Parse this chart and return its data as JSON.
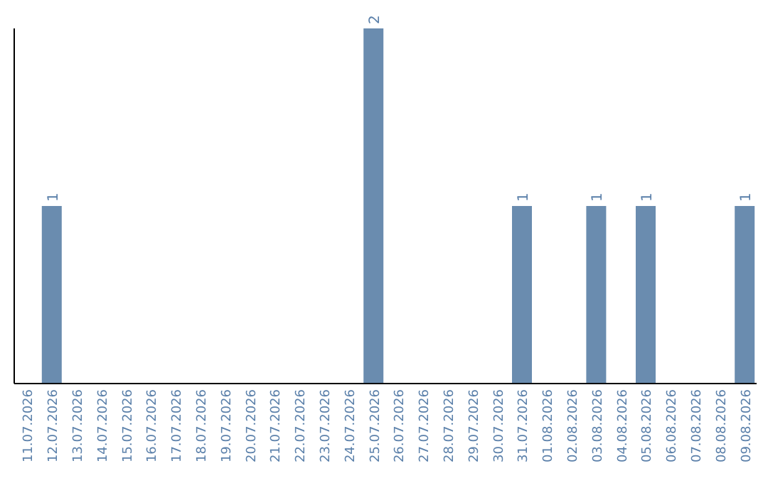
{
  "chart_data": {
    "type": "bar",
    "categories": [
      "11.07.2026",
      "12.07.2026",
      "13.07.2026",
      "14.07.2026",
      "15.07.2026",
      "16.07.2026",
      "17.07.2026",
      "18.07.2026",
      "19.07.2026",
      "20.07.2026",
      "21.07.2026",
      "22.07.2026",
      "23.07.2026",
      "24.07.2026",
      "25.07.2026",
      "26.07.2026",
      "27.07.2026",
      "28.07.2026",
      "29.07.2026",
      "30.07.2026",
      "31.07.2026",
      "01.08.2026",
      "02.08.2026",
      "03.08.2026",
      "04.08.2026",
      "05.08.2026",
      "06.08.2026",
      "07.08.2026",
      "08.08.2026",
      "09.08.2026"
    ],
    "values": [
      0,
      1,
      0,
      0,
      0,
      0,
      0,
      0,
      0,
      0,
      0,
      0,
      0,
      0,
      2,
      0,
      0,
      0,
      0,
      0,
      1,
      0,
      0,
      1,
      0,
      1,
      0,
      0,
      0,
      1
    ],
    "value_labels": [
      null,
      "1",
      null,
      null,
      null,
      null,
      null,
      null,
      null,
      null,
      null,
      null,
      null,
      null,
      "2",
      null,
      null,
      null,
      null,
      null,
      "1",
      null,
      null,
      "1",
      null,
      "1",
      null,
      null,
      null,
      "1"
    ],
    "color": "#6a8caf",
    "grid": false,
    "legend": false
  }
}
